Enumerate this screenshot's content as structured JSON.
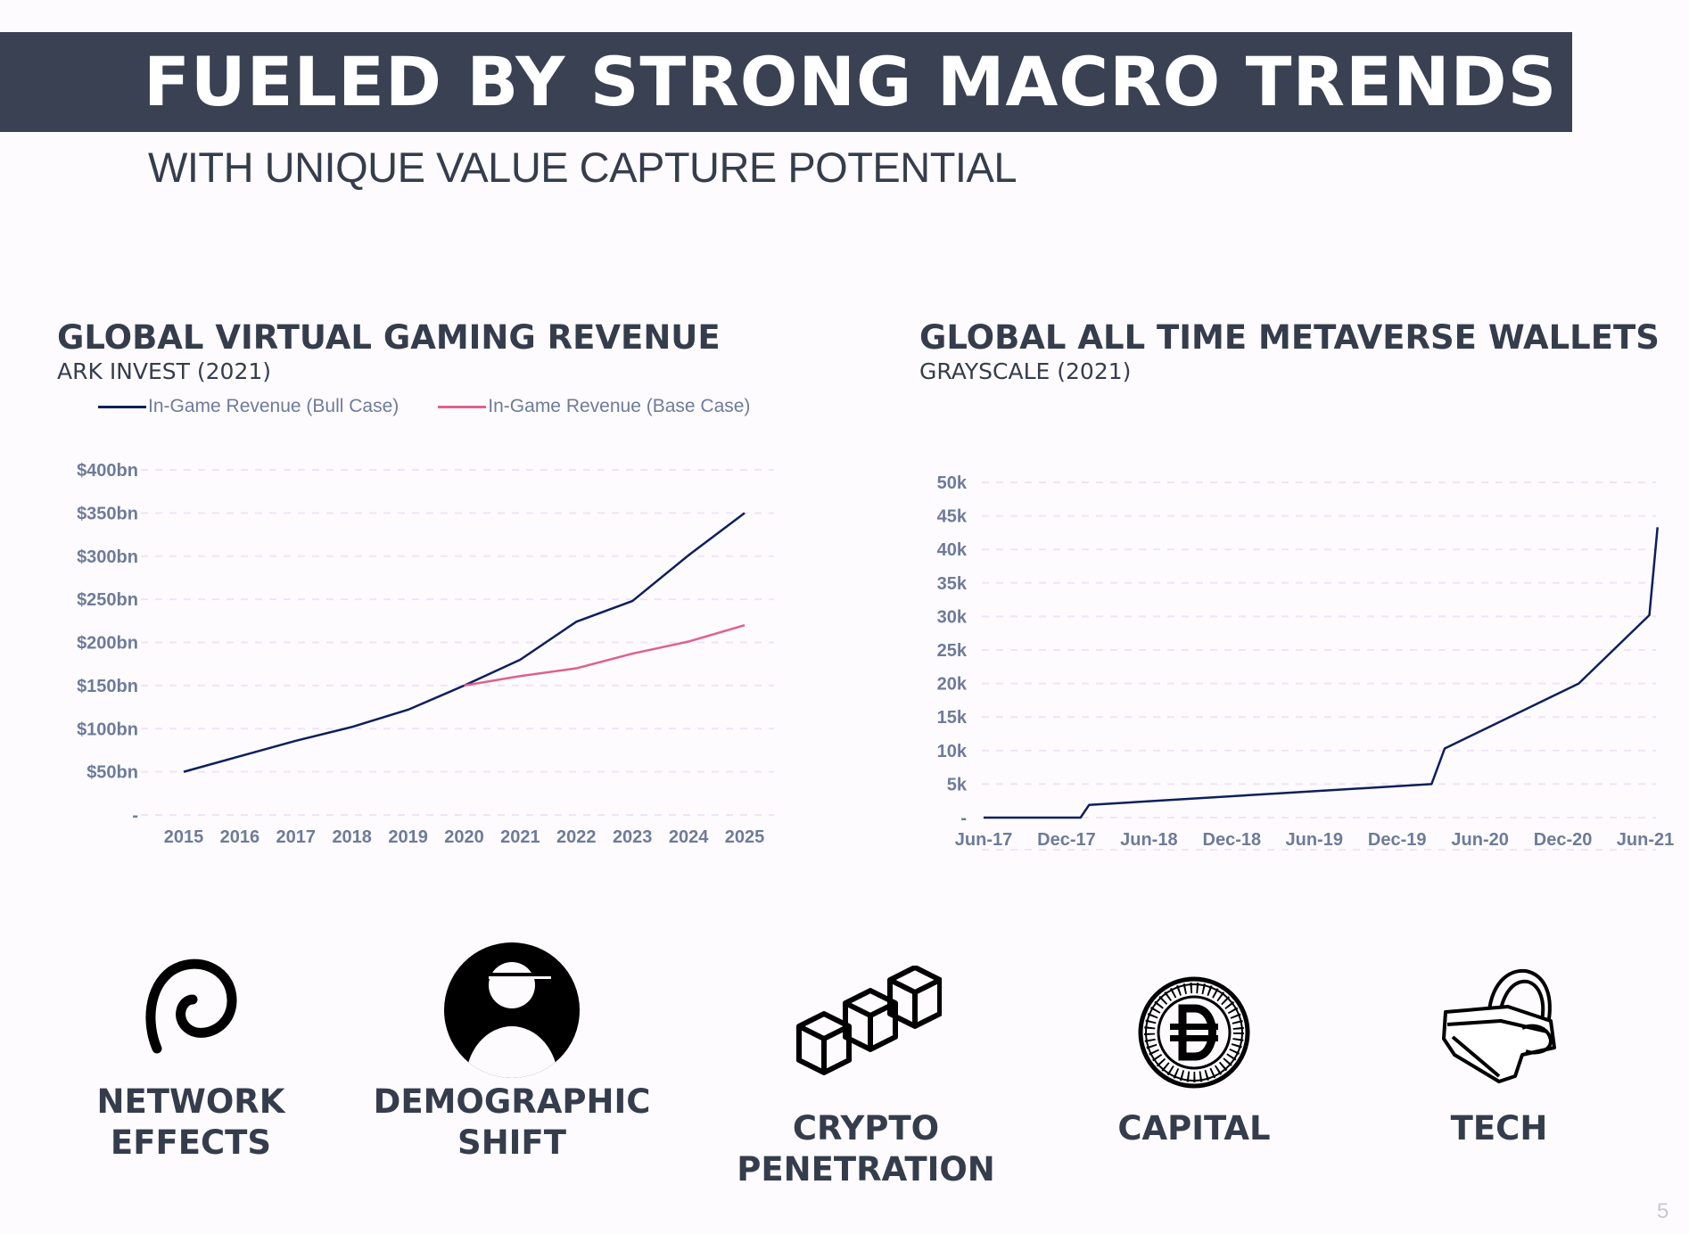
{
  "header": {
    "title": "FUELED BY STRONG MACRO TRENDS",
    "subtitle": "WITH UNIQUE VALUE CAPTURE POTENTIAL"
  },
  "colors": {
    "header_bg": "#394152",
    "text": "#353d4d",
    "axis_text": "#6e7b99",
    "bull_line": "#0d1f5c",
    "base_line": "#e0608a",
    "grid": "#f1e3f7"
  },
  "chart_data": [
    {
      "type": "line",
      "title": "GLOBAL VIRTUAL GAMING REVENUE",
      "subtitle": "ARK INVEST (2021)",
      "x": [
        2015,
        2016,
        2017,
        2018,
        2019,
        2020,
        2021,
        2022,
        2023,
        2024,
        2025
      ],
      "x_tick_labels": [
        "2015",
        "2016",
        "2017",
        "2018",
        "2019",
        "2020",
        "2021",
        "2022",
        "2023",
        "2024",
        "2025"
      ],
      "y_tick_labels": [
        "-",
        "$50bn",
        "$100bn",
        "$150bn",
        "$200bn",
        "$250bn",
        "$300bn",
        "$350bn",
        "$400bn"
      ],
      "y_ticks": [
        0,
        50,
        100,
        150,
        200,
        250,
        300,
        350,
        400
      ],
      "ylim": [
        0,
        400
      ],
      "grid": "horizontal dashed",
      "legend_placement": "top",
      "series": [
        {
          "name": "In-Game Revenue (Bull Case)",
          "color": "#0d1f5c",
          "x": [
            2015,
            2016,
            2017,
            2018,
            2019,
            2020,
            2021,
            2022,
            2023,
            2024,
            2025
          ],
          "values": [
            50,
            68,
            86,
            102,
            122,
            150,
            180,
            224,
            248,
            301,
            350
          ]
        },
        {
          "name": "In-Game Revenue (Base Case)",
          "color": "#e0608a",
          "x": [
            2020,
            2021,
            2022,
            2023,
            2024,
            2025
          ],
          "values": [
            150,
            161,
            170,
            187,
            201,
            220
          ]
        }
      ]
    },
    {
      "type": "line",
      "title": "GLOBAL ALL TIME METAVERSE WALLETS",
      "subtitle": "GRAYSCALE (2021)",
      "x_tick_labels": [
        "Jun-17",
        "Dec-17",
        "Jun-18",
        "Dec-18",
        "Jun-19",
        "Dec-19",
        "Jun-20",
        "Dec-20",
        "Jun-21"
      ],
      "x_ticks": [
        "2017-06-01",
        "2017-12-01",
        "2018-06-01",
        "2018-12-01",
        "2019-06-01",
        "2019-12-01",
        "2020-06-01",
        "2020-12-01",
        "2021-06-01"
      ],
      "y_tick_labels": [
        "-",
        "5k",
        "10k",
        "15k",
        "20k",
        "25k",
        "30k",
        "35k",
        "40k",
        "45k",
        "50k"
      ],
      "y_ticks": [
        0,
        5000,
        10000,
        15000,
        20000,
        25000,
        30000,
        35000,
        40000,
        45000,
        50000
      ],
      "ylim": [
        0,
        50000
      ],
      "grid": "horizontal dashed",
      "series": [
        {
          "color": "#0d1f5c",
          "x": [
            "2017-06-01",
            "2018-01-01",
            "2018-01-20",
            "2020-02-15",
            "2020-03-15",
            "2021-01-05",
            "2021-06-10",
            "2021-06-28"
          ],
          "values": [
            0,
            0,
            1900,
            5000,
            10300,
            20000,
            30200,
            43300
          ]
        }
      ]
    }
  ],
  "trends": [
    {
      "icon": "spiral-icon",
      "line1": "NETWORK",
      "line2": "EFFECTS"
    },
    {
      "icon": "person-icon",
      "line1": "DEMOGRAPHIC",
      "line2": "SHIFT"
    },
    {
      "icon": "blockchain-cubes-icon",
      "line1": "CRYPTO",
      "line2": "PENETRATION"
    },
    {
      "icon": "crypto-coin-icon",
      "line1": "CAPITAL",
      "line2": ""
    },
    {
      "icon": "vr-headset-icon",
      "line1": "TECH",
      "line2": ""
    }
  ],
  "page_number": "5"
}
